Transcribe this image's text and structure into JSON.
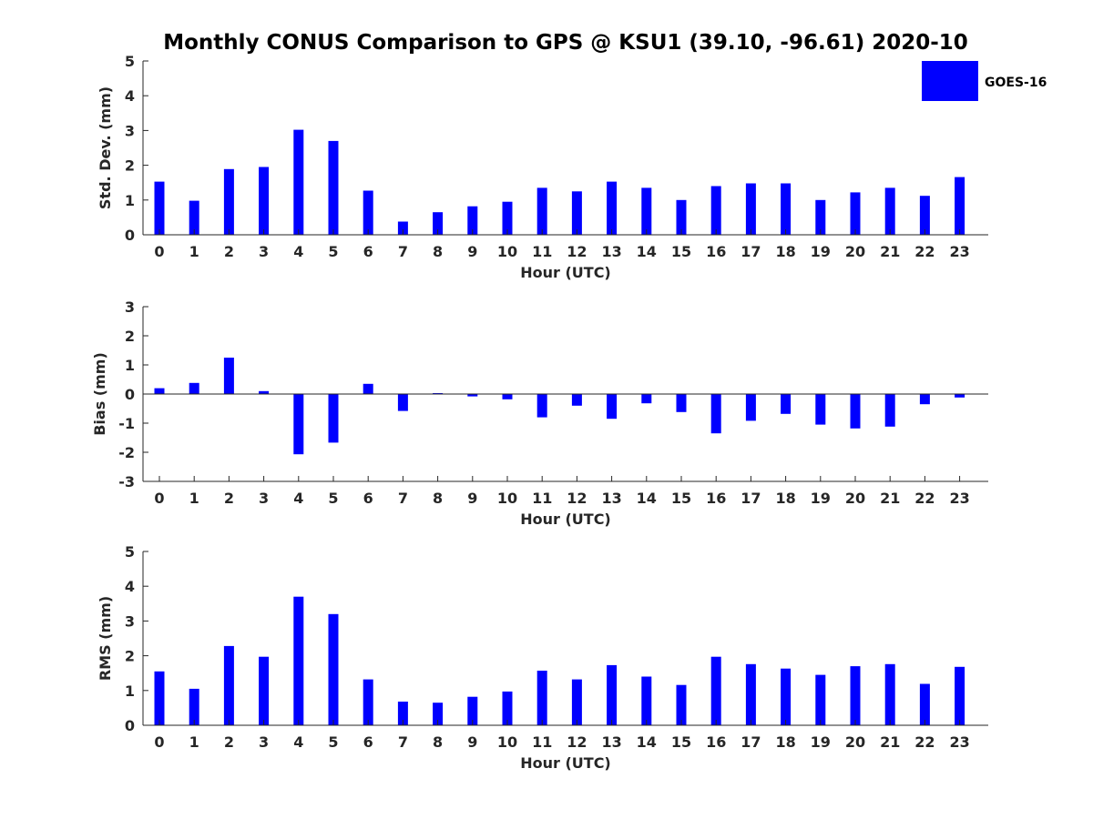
{
  "title": "Monthly CONUS Comparison to GPS @ KSU1 (39.10, -96.61) 2020-10",
  "legend": {
    "label": "GOES-16",
    "color": "#0000ff",
    "placement": "top-right"
  },
  "chart_data": [
    {
      "type": "bar",
      "xlabel": "Hour (UTC)",
      "ylabel": "Std. Dev. (mm)",
      "ylim": [
        0,
        5
      ],
      "yticks": [
        "0",
        "1",
        "2",
        "3",
        "4",
        "5"
      ],
      "categories": [
        "0",
        "1",
        "2",
        "3",
        "4",
        "5",
        "6",
        "7",
        "8",
        "9",
        "10",
        "11",
        "12",
        "13",
        "14",
        "15",
        "16",
        "17",
        "18",
        "19",
        "20",
        "21",
        "22",
        "23"
      ],
      "series": [
        {
          "name": "GOES-16",
          "values": [
            1.53,
            0.98,
            1.89,
            1.95,
            3.02,
            2.7,
            1.27,
            0.38,
            0.65,
            0.82,
            0.95,
            1.35,
            1.25,
            1.53,
            1.35,
            1.0,
            1.4,
            1.48,
            1.48,
            1.0,
            1.22,
            1.35,
            1.12,
            1.66
          ]
        }
      ],
      "grid": false
    },
    {
      "type": "bar",
      "xlabel": "Hour (UTC)",
      "ylabel": "Bias (mm)",
      "ylim": [
        -3,
        3
      ],
      "yticks": [
        "-3",
        "-2",
        "-1",
        "0",
        "1",
        "2",
        "3"
      ],
      "categories": [
        "0",
        "1",
        "2",
        "3",
        "4",
        "5",
        "6",
        "7",
        "8",
        "9",
        "10",
        "11",
        "12",
        "13",
        "14",
        "15",
        "16",
        "17",
        "18",
        "19",
        "20",
        "21",
        "22",
        "23"
      ],
      "series": [
        {
          "name": "GOES-16",
          "values": [
            0.2,
            0.38,
            1.25,
            0.1,
            -2.07,
            -1.67,
            0.35,
            -0.58,
            0.03,
            -0.08,
            -0.18,
            -0.8,
            -0.4,
            -0.85,
            -0.32,
            -0.62,
            -1.35,
            -0.92,
            -0.68,
            -1.05,
            -1.18,
            -1.12,
            -0.35,
            -0.12
          ]
        }
      ],
      "grid": false
    },
    {
      "type": "bar",
      "xlabel": "Hour (UTC)",
      "ylabel": "RMS (mm)",
      "ylim": [
        0,
        5
      ],
      "yticks": [
        "0",
        "1",
        "2",
        "3",
        "4",
        "5"
      ],
      "categories": [
        "0",
        "1",
        "2",
        "3",
        "4",
        "5",
        "6",
        "7",
        "8",
        "9",
        "10",
        "11",
        "12",
        "13",
        "14",
        "15",
        "16",
        "17",
        "18",
        "19",
        "20",
        "21",
        "22",
        "23"
      ],
      "series": [
        {
          "name": "GOES-16",
          "values": [
            1.55,
            1.05,
            2.28,
            1.97,
            3.7,
            3.2,
            1.32,
            0.68,
            0.65,
            0.82,
            0.97,
            1.57,
            1.32,
            1.73,
            1.4,
            1.16,
            1.97,
            1.76,
            1.63,
            1.45,
            1.7,
            1.76,
            1.19,
            1.68
          ]
        }
      ],
      "grid": false
    }
  ]
}
